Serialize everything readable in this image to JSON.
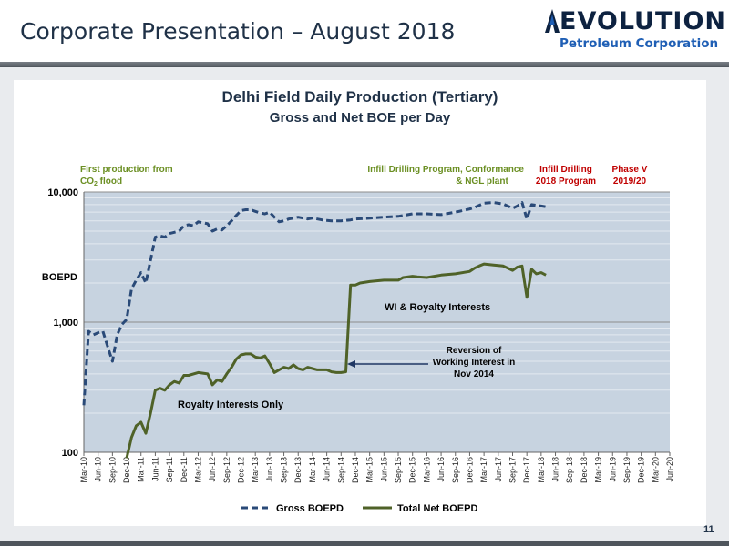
{
  "slide": {
    "title": "Corporate Presentation – August 2018",
    "page_number": "11",
    "logo": {
      "name": "EVOLUTION",
      "subtitle": "Petroleum Corporation"
    }
  },
  "colors": {
    "title_color": "#1f3147",
    "plot_bg": "#c7d3e0",
    "gross_line": "#2a4a78",
    "net_line": "#4f6228",
    "green_annotation": "#6b8f23",
    "red_annotation": "#c00000"
  },
  "chart_data": {
    "type": "line",
    "title": "Delhi Field Daily Production (Tertiary)",
    "subtitle": "Gross and Net BOE per Day",
    "ylabel": "BOEPD",
    "yscale": "log",
    "ylim": [
      100,
      10000
    ],
    "y_ticks": [
      "100",
      "1,000",
      "10,000"
    ],
    "grid": true,
    "legend_position": "bottom",
    "x_tick_labels": [
      "Mar-10",
      "Jun-10",
      "Sep-10",
      "Dec-10",
      "Mar-11",
      "Jun-11",
      "Sep-11",
      "Dec-11",
      "Mar-12",
      "Jun-12",
      "Sep-12",
      "Dec-12",
      "Mar-13",
      "Jun-13",
      "Sep-13",
      "Dec-13",
      "Mar-14",
      "Jun-14",
      "Sep-14",
      "Dec-14",
      "Mar-15",
      "Jun-15",
      "Sep-15",
      "Dec-15",
      "Mar-16",
      "Jun-16",
      "Sep-16",
      "Dec-16",
      "Mar-17",
      "Jun-17",
      "Sep-17",
      "Dec-17",
      "Mar-18",
      "Jun-18",
      "Sep-18",
      "Dec-18",
      "Mar-19",
      "Jun-19",
      "Sep-19",
      "Dec-19",
      "Mar-20",
      "Jun-20"
    ],
    "x_range": [
      "2010-03",
      "2020-06"
    ],
    "series": [
      {
        "name": "Gross BOEPD",
        "style": "dashed",
        "points": [
          [
            "2010-03",
            230
          ],
          [
            "2010-04",
            850
          ],
          [
            "2010-05",
            800
          ],
          [
            "2010-06",
            830
          ],
          [
            "2010-07",
            850
          ],
          [
            "2010-08",
            650
          ],
          [
            "2010-09",
            500
          ],
          [
            "2010-10",
            800
          ],
          [
            "2010-11",
            960
          ],
          [
            "2010-12",
            1050
          ],
          [
            "2011-01",
            1800
          ],
          [
            "2011-02",
            2100
          ],
          [
            "2011-03",
            2400
          ],
          [
            "2011-04",
            2000
          ],
          [
            "2011-05",
            3000
          ],
          [
            "2011-06",
            4500
          ],
          [
            "2011-07",
            4600
          ],
          [
            "2011-08",
            4500
          ],
          [
            "2011-09",
            4800
          ],
          [
            "2011-10",
            4900
          ],
          [
            "2011-11",
            5000
          ],
          [
            "2011-12",
            5500
          ],
          [
            "2012-01",
            5600
          ],
          [
            "2012-02",
            5500
          ],
          [
            "2012-03",
            5900
          ],
          [
            "2012-04",
            5800
          ],
          [
            "2012-05",
            5700
          ],
          [
            "2012-06",
            5000
          ],
          [
            "2012-07",
            5200
          ],
          [
            "2012-08",
            5100
          ],
          [
            "2012-09",
            5500
          ],
          [
            "2012-10",
            6000
          ],
          [
            "2012-11",
            6600
          ],
          [
            "2012-12",
            7200
          ],
          [
            "2013-01",
            7300
          ],
          [
            "2013-02",
            7300
          ],
          [
            "2013-03",
            7100
          ],
          [
            "2013-04",
            6900
          ],
          [
            "2013-05",
            6800
          ],
          [
            "2013-06",
            7000
          ],
          [
            "2013-07",
            6400
          ],
          [
            "2013-08",
            5900
          ],
          [
            "2013-09",
            6000
          ],
          [
            "2013-10",
            6200
          ],
          [
            "2013-11",
            6300
          ],
          [
            "2013-12",
            6400
          ],
          [
            "2014-01",
            6300
          ],
          [
            "2014-02",
            6200
          ],
          [
            "2014-03",
            6300
          ],
          [
            "2014-04",
            6200
          ],
          [
            "2014-05",
            6100
          ],
          [
            "2014-06",
            6050
          ],
          [
            "2014-07",
            6000
          ],
          [
            "2014-08",
            6000
          ],
          [
            "2014-09",
            6000
          ],
          [
            "2014-10",
            6050
          ],
          [
            "2014-11",
            6100
          ],
          [
            "2014-12",
            6200
          ],
          [
            "2015-03",
            6300
          ],
          [
            "2015-06",
            6400
          ],
          [
            "2015-09",
            6500
          ],
          [
            "2015-12",
            6800
          ],
          [
            "2016-03",
            6800
          ],
          [
            "2016-06",
            6700
          ],
          [
            "2016-09",
            7000
          ],
          [
            "2016-12",
            7400
          ],
          [
            "2017-01",
            7600
          ],
          [
            "2017-03",
            8200
          ],
          [
            "2017-05",
            8300
          ],
          [
            "2017-07",
            8100
          ],
          [
            "2017-09",
            7500
          ],
          [
            "2017-10",
            7800
          ],
          [
            "2017-11",
            8300
          ],
          [
            "2017-12",
            6200
          ],
          [
            "2018-01",
            8000
          ],
          [
            "2018-03",
            7800
          ],
          [
            "2018-04",
            7700
          ]
        ]
      },
      {
        "name": "Total Net BOEPD",
        "style": "solid",
        "points": [
          [
            "2010-12",
            90
          ],
          [
            "2011-01",
            130
          ],
          [
            "2011-02",
            160
          ],
          [
            "2011-03",
            170
          ],
          [
            "2011-04",
            140
          ],
          [
            "2011-05",
            200
          ],
          [
            "2011-06",
            300
          ],
          [
            "2011-07",
            310
          ],
          [
            "2011-08",
            300
          ],
          [
            "2011-09",
            330
          ],
          [
            "2011-10",
            350
          ],
          [
            "2011-11",
            340
          ],
          [
            "2011-12",
            390
          ],
          [
            "2012-01",
            390
          ],
          [
            "2012-03",
            410
          ],
          [
            "2012-05",
            400
          ],
          [
            "2012-06",
            330
          ],
          [
            "2012-07",
            360
          ],
          [
            "2012-08",
            350
          ],
          [
            "2012-09",
            400
          ],
          [
            "2012-10",
            450
          ],
          [
            "2012-11",
            520
          ],
          [
            "2012-12",
            560
          ],
          [
            "2013-01",
            570
          ],
          [
            "2013-02",
            570
          ],
          [
            "2013-03",
            540
          ],
          [
            "2013-04",
            530
          ],
          [
            "2013-05",
            550
          ],
          [
            "2013-06",
            480
          ],
          [
            "2013-07",
            410
          ],
          [
            "2013-08",
            430
          ],
          [
            "2013-09",
            450
          ],
          [
            "2013-10",
            440
          ],
          [
            "2013-11",
            470
          ],
          [
            "2013-12",
            440
          ],
          [
            "2014-01",
            430
          ],
          [
            "2014-02",
            450
          ],
          [
            "2014-03",
            440
          ],
          [
            "2014-04",
            430
          ],
          [
            "2014-05",
            430
          ],
          [
            "2014-06",
            430
          ],
          [
            "2014-07",
            415
          ],
          [
            "2014-08",
            410
          ],
          [
            "2014-09",
            410
          ],
          [
            "2014-10",
            415
          ],
          [
            "2014-11",
            1930
          ],
          [
            "2014-12",
            1930
          ],
          [
            "2015-01",
            2000
          ],
          [
            "2015-03",
            2050
          ],
          [
            "2015-06",
            2100
          ],
          [
            "2015-09",
            2100
          ],
          [
            "2015-10",
            2200
          ],
          [
            "2015-12",
            2250
          ],
          [
            "2016-01",
            2230
          ],
          [
            "2016-03",
            2200
          ],
          [
            "2016-06",
            2300
          ],
          [
            "2016-09",
            2350
          ],
          [
            "2016-12",
            2450
          ],
          [
            "2017-01",
            2600
          ],
          [
            "2017-02",
            2700
          ],
          [
            "2017-03",
            2800
          ],
          [
            "2017-05",
            2750
          ],
          [
            "2017-07",
            2700
          ],
          [
            "2017-09",
            2500
          ],
          [
            "2017-10",
            2650
          ],
          [
            "2017-11",
            2700
          ],
          [
            "2017-12",
            1550
          ],
          [
            "2018-01",
            2550
          ],
          [
            "2018-02",
            2350
          ],
          [
            "2018-03",
            2400
          ],
          [
            "2018-04",
            2300
          ]
        ]
      }
    ],
    "annotations": {
      "first_production": [
        "First production from",
        "CO",
        "2",
        " flood"
      ],
      "infill_conformance": [
        "Infill Drilling Program, Conformance",
        "& NGL plant"
      ],
      "infill_2018": [
        "Infill Drilling",
        "2018 Program"
      ],
      "phase_v": [
        "Phase V",
        "2019/20"
      ],
      "wi_royalty": "WI & Royalty Interests",
      "royalty_only": "Royalty Interests Only",
      "reversion": [
        "Reversion of",
        "Working Interest in",
        "Nov 2014"
      ]
    }
  }
}
